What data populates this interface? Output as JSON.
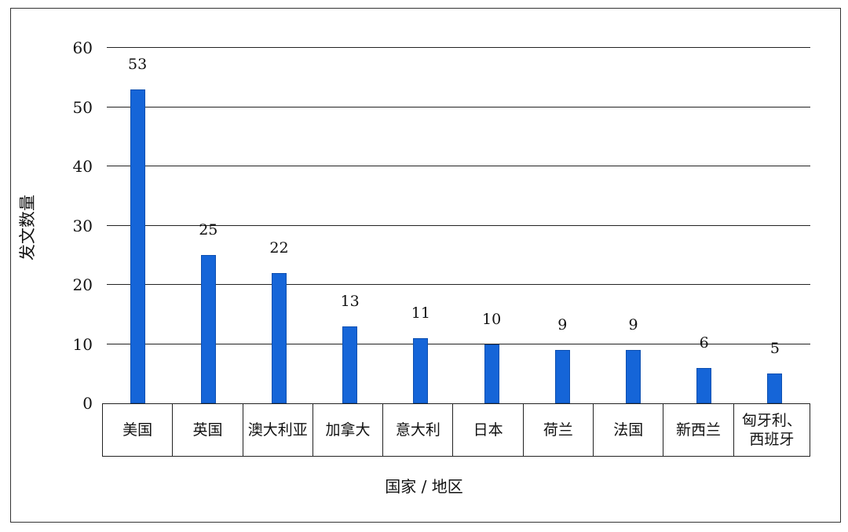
{
  "chart_data": {
    "type": "bar",
    "title": "",
    "xlabel": "国家 / 地区",
    "ylabel": "发文数量",
    "ylim": [
      0,
      60
    ],
    "yticks": [
      0,
      10,
      20,
      30,
      40,
      50,
      60
    ],
    "grid": true,
    "legend": null,
    "bar_color": "#1565d8",
    "categories": [
      "美国",
      "英国",
      "澳大利亚",
      "加拿大",
      "意大利",
      "日本",
      "荷兰",
      "法国",
      "新西兰",
      "匈牙利、西班牙"
    ],
    "values": [
      53,
      25,
      22,
      13,
      11,
      10,
      9,
      9,
      6,
      5
    ]
  },
  "labels": {
    "xlabel": "国家 / 地区",
    "ylabel": "发文数量",
    "yticks": [
      "0",
      "10",
      "20",
      "30",
      "40",
      "50",
      "60"
    ],
    "values": [
      "53",
      "25",
      "22",
      "13",
      "11",
      "10",
      "9",
      "9",
      "6",
      "5"
    ],
    "categories": [
      "美国",
      "英国",
      "澳大利亚",
      "加拿大",
      "意大利",
      "日本",
      "荷兰",
      "法国",
      "新西兰",
      "匈牙利、西班牙"
    ]
  }
}
